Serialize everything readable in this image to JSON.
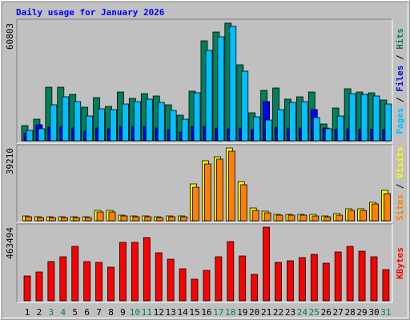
{
  "title": "Daily usage for January 2026",
  "categories": [
    "1",
    "2",
    "3",
    "4",
    "5",
    "6",
    "7",
    "8",
    "9",
    "10",
    "11",
    "12",
    "13",
    "14",
    "15",
    "16",
    "17",
    "18",
    "19",
    "20",
    "21",
    "22",
    "23",
    "24",
    "25",
    "26",
    "27",
    "28",
    "29",
    "30",
    "31"
  ],
  "category_colors": [
    "#000000",
    "#000000",
    "#00805c",
    "#00805c",
    "#000000",
    "#000000",
    "#000000",
    "#000000",
    "#000000",
    "#00805c",
    "#00805c",
    "#000000",
    "#000000",
    "#000000",
    "#000000",
    "#000000",
    "#00805c",
    "#00805c",
    "#000000",
    "#000000",
    "#000000",
    "#000000",
    "#000000",
    "#00805c",
    "#00805c",
    "#000000",
    "#000000",
    "#000000",
    "#000000",
    "#000000",
    "#00805c"
  ],
  "legend_separator": " / ",
  "chart_data": [
    {
      "type": "bar",
      "ylim": [
        0,
        60803
      ],
      "yticks": [
        60803
      ],
      "series": [
        {
          "name": "Pages",
          "color": "#00c0ff",
          "values": [
            5380,
            6200,
            18610,
            22750,
            20270,
            12820,
            16540,
            16130,
            19030,
            20270,
            21510,
            19850,
            15720,
            11170,
            24820,
            46740,
            53770,
            59150,
            35990,
            12410,
            10750,
            16130,
            19850,
            20270,
            12000,
            6200,
            12820,
            24400,
            23990,
            23160,
            19030
          ]
        },
        {
          "name": "Files",
          "color": "#0000ff",
          "values": [
            4000,
            8300,
            7000,
            7400,
            6600,
            5000,
            6600,
            6200,
            7400,
            7400,
            7400,
            6600,
            5800,
            4500,
            7400,
            7400,
            6600,
            6200,
            6600,
            5800,
            20270,
            7000,
            6600,
            6600,
            16130,
            6600,
            6000,
            6200,
            6000,
            6000,
            5800
          ]
        },
        {
          "name": "Hits",
          "color": "#00805c",
          "values": [
            7860,
            11170,
            27710,
            27710,
            23990,
            17370,
            22340,
            17790,
            25230,
            21920,
            24400,
            23160,
            18610,
            13240,
            25640,
            51700,
            56250,
            60803,
            39290,
            14480,
            26060,
            27300,
            21510,
            22750,
            25230,
            8690,
            16960,
            26890,
            25230,
            24820,
            21090
          ]
        }
      ]
    },
    {
      "type": "bar",
      "ylim": [
        0,
        39210
      ],
      "yticks": [
        39210
      ],
      "series": [
        {
          "name": "Sites",
          "color": "#ff8000",
          "values": [
            2150,
            1720,
            1720,
            1720,
            1720,
            1720,
            4740,
            4740,
            2590,
            2150,
            2150,
            1720,
            2150,
            2150,
            18100,
            30600,
            33200,
            37500,
            19400,
            5600,
            4300,
            3020,
            3020,
            3020,
            2590,
            2150,
            3020,
            5600,
            5600,
            9050,
            14660
          ]
        },
        {
          "name": "Visits",
          "color": "#ffff00",
          "values": [
            2590,
            2150,
            2150,
            2150,
            2150,
            2150,
            5600,
            5600,
            3020,
            2590,
            2590,
            2150,
            2590,
            2590,
            19820,
            32320,
            34470,
            39210,
            21110,
            6890,
            5170,
            3450,
            3450,
            3450,
            3450,
            2590,
            3880,
            6460,
            6460,
            9910,
            16370
          ]
        }
      ]
    },
    {
      "type": "bar",
      "ylim": [
        0,
        463494
      ],
      "yticks": [
        463494
      ],
      "series": [
        {
          "name": "KBytes",
          "color": "#ff0000",
          "values": [
            156180,
            181370,
            246870,
            277100,
            342590,
            246870,
            241830,
            211600,
            367780,
            367780,
            398010,
            302280,
            261980,
            201520,
            136030,
            191450,
            277100,
            372810,
            282130,
            166250,
            463494,
            241830,
            251900,
            272060,
            292210,
            236790,
            307320,
            342590,
            312360,
            277100,
            196490
          ]
        }
      ]
    }
  ]
}
